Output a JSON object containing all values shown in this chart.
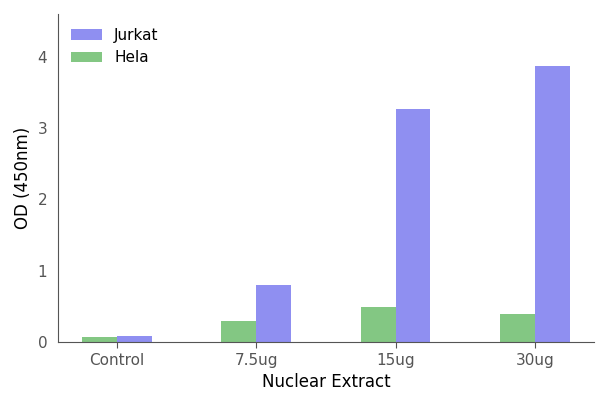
{
  "categories": [
    "Control",
    "7.5ug",
    "15ug",
    "30ug"
  ],
  "jurkat_values": [
    0.08,
    0.8,
    3.27,
    3.87
  ],
  "hela_values": [
    0.07,
    0.3,
    0.49,
    0.4
  ],
  "jurkat_color": "#7b7bef",
  "hela_color": "#6dbd6d",
  "xlabel": "Nuclear Extract",
  "ylabel": "OD (450nm)",
  "ylim": [
    0,
    4.6
  ],
  "yticks": [
    0,
    1,
    2,
    3,
    4
  ],
  "legend_labels": [
    "Jurkat",
    "Hela"
  ],
  "bar_width": 0.25,
  "background_color": "#ffffff",
  "spine_color": "#555555",
  "tick_label_fontsize": 11,
  "axis_label_fontsize": 12,
  "legend_fontsize": 11
}
